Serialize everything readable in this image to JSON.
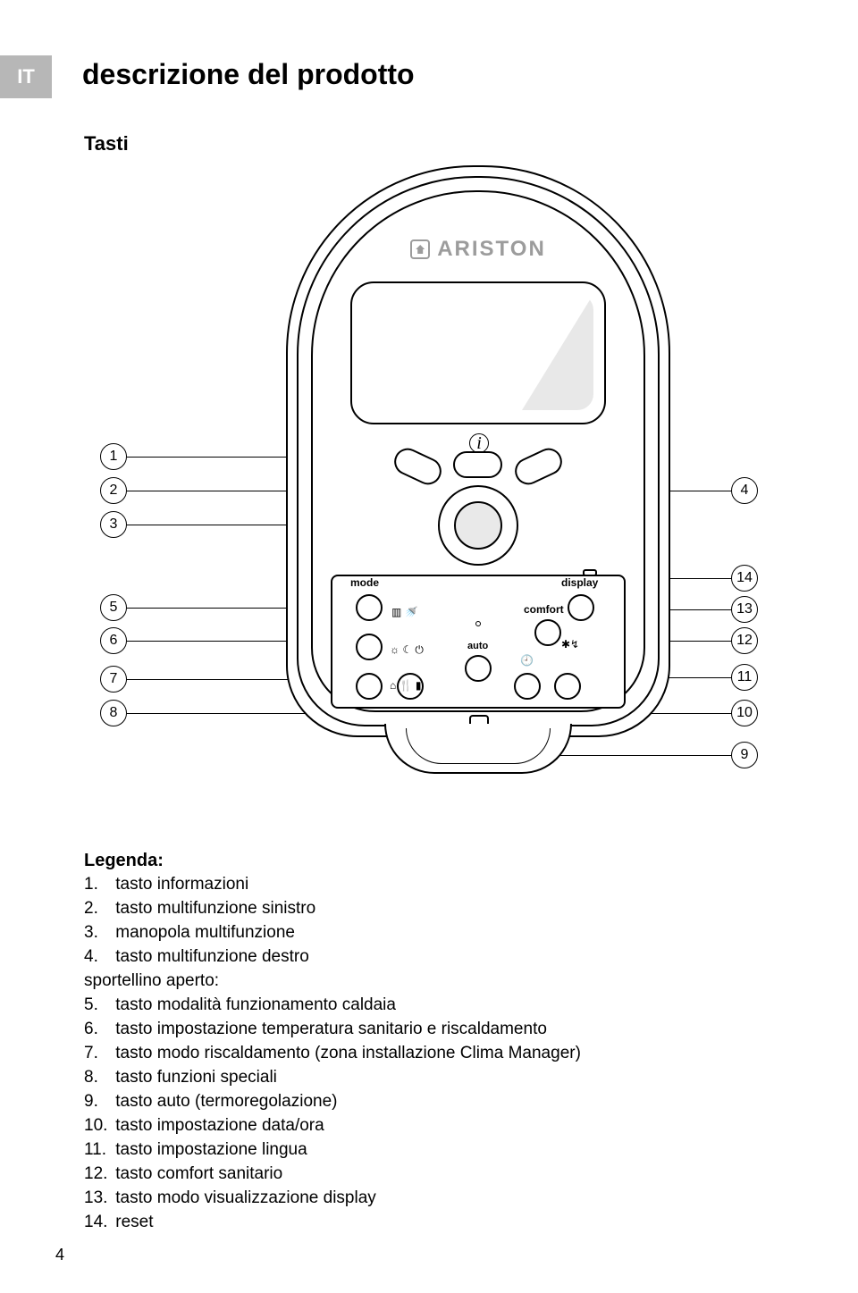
{
  "lang_tab": "IT",
  "title": "descrizione del prodotto",
  "subtitle": "Tasti",
  "brand": "ARISTON",
  "device_labels": {
    "mode": "mode",
    "display": "display",
    "comfort": "comfort",
    "auto": "auto"
  },
  "callouts_left": [
    "1",
    "2",
    "3",
    "5",
    "6",
    "7",
    "8"
  ],
  "callouts_right": [
    "4",
    "14",
    "13",
    "12",
    "11",
    "10",
    "9"
  ],
  "legend_title": "Legenda:",
  "legend": [
    {
      "n": "1.",
      "t": "tasto informazioni"
    },
    {
      "n": "2.",
      "t": "tasto multifunzione sinistro"
    },
    {
      "n": "3.",
      "t": "manopola multifunzione"
    },
    {
      "n": "4.",
      "t": "tasto multifunzione destro"
    },
    {
      "n": "",
      "t": "sportellino aperto:"
    },
    {
      "n": "5.",
      "t": "tasto modalità funzionamento caldaia"
    },
    {
      "n": "6.",
      "t": "tasto impostazione temperatura sanitario e riscaldamento"
    },
    {
      "n": "7.",
      "t": "tasto modo riscaldamento (zona installazione Clima Manager)"
    },
    {
      "n": "8.",
      "t": "tasto funzioni speciali"
    },
    {
      "n": "9.",
      "t": "tasto auto (termoregolazione)"
    },
    {
      "n": "10.",
      "t": "tasto impostazione data/ora"
    },
    {
      "n": "11.",
      "t": "tasto impostazione lingua"
    },
    {
      "n": "12.",
      "t": "tasto comfort sanitario"
    },
    {
      "n": "13.",
      "t": "tasto modo visualizzazione display"
    },
    {
      "n": "14.",
      "t": "reset"
    }
  ],
  "page_number": "4",
  "icons": {
    "hw": "▥ 🚿",
    "sunmoon": "☼ ☾ ⏻",
    "home": "⌂ 🍴 ▮",
    "clock": "🕘",
    "fan": "✱↯"
  }
}
